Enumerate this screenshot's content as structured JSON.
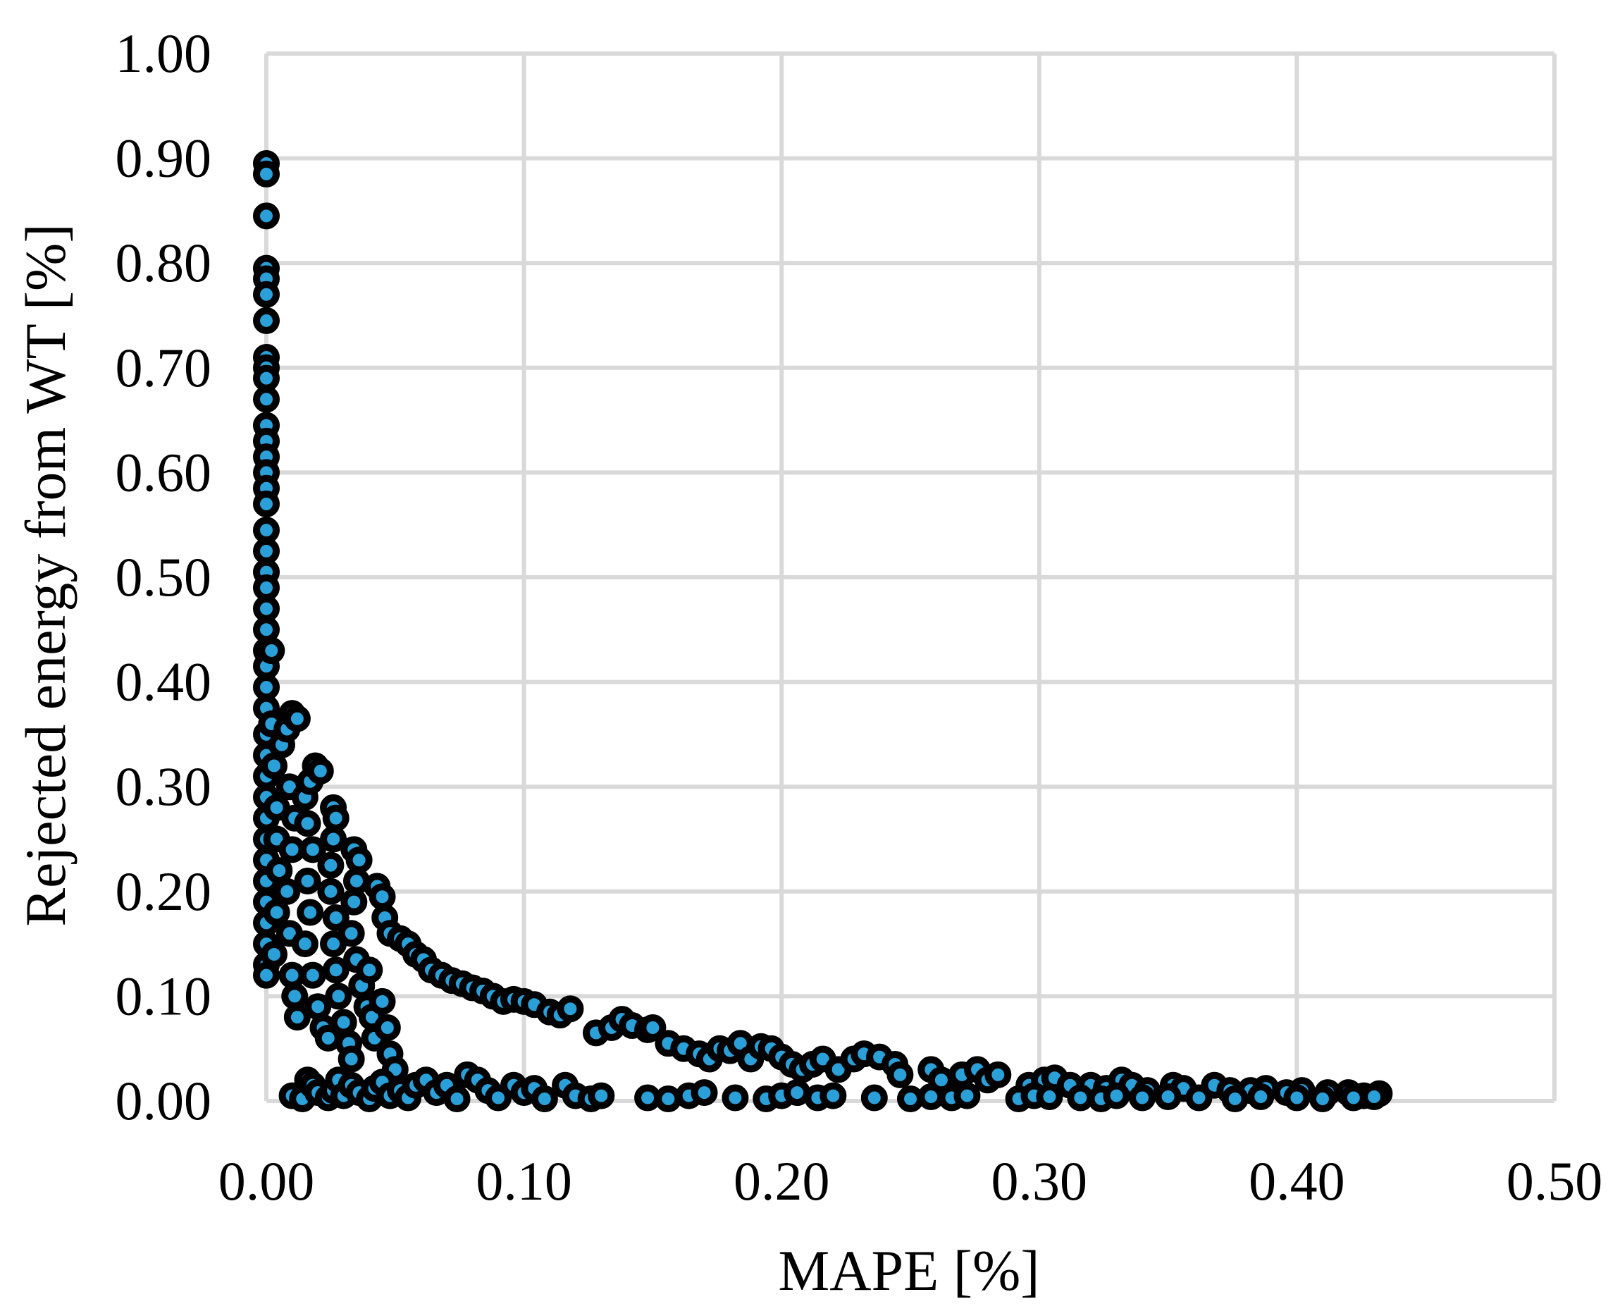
{
  "chart_data": {
    "type": "scatter",
    "xlabel": "MAPE [%]",
    "ylabel": "Rejected energy from WT [%]",
    "xlim": [
      0,
      0.5
    ],
    "ylim": [
      0,
      1.0
    ],
    "x_ticks": [
      "0.00",
      "0.10",
      "0.20",
      "0.30",
      "0.40",
      "0.50"
    ],
    "y_ticks": [
      "0.00",
      "0.10",
      "0.20",
      "0.30",
      "0.40",
      "0.50",
      "0.60",
      "0.70",
      "0.80",
      "0.90",
      "1.00"
    ],
    "grid": true,
    "legend": "none",
    "marker_fill": "#2a9fd8",
    "marker_edge": "#000000",
    "grid_color": "#d9d9d9",
    "series": [
      {
        "points": [
          [
            0.0,
            0.895
          ],
          [
            0.0,
            0.885
          ],
          [
            0.0,
            0.845
          ],
          [
            0.0,
            0.795
          ],
          [
            0.0,
            0.785
          ],
          [
            0.0,
            0.77
          ],
          [
            0.0,
            0.745
          ],
          [
            0.0,
            0.71
          ],
          [
            0.0,
            0.7
          ],
          [
            0.0,
            0.69
          ],
          [
            0.0,
            0.67
          ],
          [
            0.0,
            0.645
          ],
          [
            0.0,
            0.63
          ],
          [
            0.0,
            0.615
          ],
          [
            0.0,
            0.6
          ],
          [
            0.0,
            0.585
          ],
          [
            0.0,
            0.57
          ],
          [
            0.0,
            0.545
          ],
          [
            0.0,
            0.525
          ],
          [
            0.0,
            0.505
          ],
          [
            0.0,
            0.49
          ],
          [
            0.0,
            0.47
          ],
          [
            0.0,
            0.45
          ],
          [
            0.0,
            0.43
          ],
          [
            0.0,
            0.415
          ],
          [
            0.0,
            0.395
          ],
          [
            0.0,
            0.375
          ],
          [
            0.0,
            0.35
          ],
          [
            0.0,
            0.33
          ],
          [
            0.0,
            0.31
          ],
          [
            0.0,
            0.29
          ],
          [
            0.0,
            0.27
          ],
          [
            0.0,
            0.25
          ],
          [
            0.0,
            0.23
          ],
          [
            0.0,
            0.21
          ],
          [
            0.0,
            0.19
          ],
          [
            0.0,
            0.17
          ],
          [
            0.0,
            0.15
          ],
          [
            0.0,
            0.13
          ],
          [
            0.0,
            0.12
          ],
          [
            0.002,
            0.43
          ],
          [
            0.002,
            0.36
          ],
          [
            0.003,
            0.32
          ],
          [
            0.004,
            0.28
          ],
          [
            0.004,
            0.25
          ],
          [
            0.005,
            0.22
          ],
          [
            0.004,
            0.18
          ],
          [
            0.003,
            0.14
          ],
          [
            0.006,
            0.34
          ],
          [
            0.008,
            0.355
          ],
          [
            0.01,
            0.37
          ],
          [
            0.012,
            0.365
          ],
          [
            0.009,
            0.3
          ],
          [
            0.011,
            0.27
          ],
          [
            0.01,
            0.24
          ],
          [
            0.008,
            0.2
          ],
          [
            0.009,
            0.16
          ],
          [
            0.01,
            0.12
          ],
          [
            0.011,
            0.1
          ],
          [
            0.012,
            0.08
          ],
          [
            0.015,
            0.29
          ],
          [
            0.017,
            0.305
          ],
          [
            0.019,
            0.32
          ],
          [
            0.021,
            0.315
          ],
          [
            0.016,
            0.265
          ],
          [
            0.018,
            0.24
          ],
          [
            0.016,
            0.21
          ],
          [
            0.017,
            0.18
          ],
          [
            0.015,
            0.15
          ],
          [
            0.018,
            0.12
          ],
          [
            0.02,
            0.09
          ],
          [
            0.022,
            0.07
          ],
          [
            0.024,
            0.06
          ],
          [
            0.026,
            0.28
          ],
          [
            0.027,
            0.27
          ],
          [
            0.026,
            0.25
          ],
          [
            0.025,
            0.225
          ],
          [
            0.025,
            0.2
          ],
          [
            0.027,
            0.175
          ],
          [
            0.026,
            0.15
          ],
          [
            0.027,
            0.125
          ],
          [
            0.028,
            0.1
          ],
          [
            0.03,
            0.075
          ],
          [
            0.032,
            0.055
          ],
          [
            0.033,
            0.04
          ],
          [
            0.034,
            0.24
          ],
          [
            0.036,
            0.23
          ],
          [
            0.035,
            0.21
          ],
          [
            0.034,
            0.19
          ],
          [
            0.033,
            0.16
          ],
          [
            0.035,
            0.135
          ],
          [
            0.037,
            0.11
          ],
          [
            0.039,
            0.09
          ],
          [
            0.04,
            0.125
          ],
          [
            0.041,
            0.08
          ],
          [
            0.042,
            0.06
          ],
          [
            0.043,
            0.205
          ],
          [
            0.045,
            0.195
          ],
          [
            0.046,
            0.175
          ],
          [
            0.048,
            0.16
          ],
          [
            0.045,
            0.095
          ],
          [
            0.047,
            0.07
          ],
          [
            0.048,
            0.045
          ],
          [
            0.05,
            0.03
          ],
          [
            0.052,
            0.155
          ],
          [
            0.055,
            0.15
          ],
          [
            0.058,
            0.14
          ],
          [
            0.061,
            0.135
          ],
          [
            0.064,
            0.125
          ],
          [
            0.068,
            0.12
          ],
          [
            0.072,
            0.115
          ],
          [
            0.076,
            0.112
          ],
          [
            0.08,
            0.108
          ],
          [
            0.084,
            0.105
          ],
          [
            0.088,
            0.1
          ],
          [
            0.092,
            0.095
          ],
          [
            0.096,
            0.097
          ],
          [
            0.1,
            0.095
          ],
          [
            0.104,
            0.092
          ],
          [
            0.11,
            0.085
          ],
          [
            0.114,
            0.082
          ],
          [
            0.118,
            0.088
          ],
          [
            0.128,
            0.065
          ],
          [
            0.134,
            0.07
          ],
          [
            0.138,
            0.078
          ],
          [
            0.142,
            0.072
          ],
          [
            0.148,
            0.068
          ],
          [
            0.15,
            0.07
          ],
          [
            0.156,
            0.055
          ],
          [
            0.162,
            0.05
          ],
          [
            0.168,
            0.045
          ],
          [
            0.172,
            0.04
          ],
          [
            0.176,
            0.05
          ],
          [
            0.18,
            0.048
          ],
          [
            0.184,
            0.055
          ],
          [
            0.188,
            0.04
          ],
          [
            0.192,
            0.052
          ],
          [
            0.196,
            0.05
          ],
          [
            0.2,
            0.042
          ],
          [
            0.204,
            0.035
          ],
          [
            0.208,
            0.03
          ],
          [
            0.212,
            0.035
          ],
          [
            0.216,
            0.04
          ],
          [
            0.222,
            0.03
          ],
          [
            0.228,
            0.04
          ],
          [
            0.232,
            0.045
          ],
          [
            0.238,
            0.042
          ],
          [
            0.244,
            0.035
          ],
          [
            0.246,
            0.025
          ],
          [
            0.258,
            0.03
          ],
          [
            0.262,
            0.02
          ],
          [
            0.27,
            0.025
          ],
          [
            0.276,
            0.03
          ],
          [
            0.28,
            0.02
          ],
          [
            0.284,
            0.025
          ],
          [
            0.296,
            0.015
          ],
          [
            0.302,
            0.02
          ],
          [
            0.306,
            0.022
          ],
          [
            0.312,
            0.015
          ],
          [
            0.32,
            0.015
          ],
          [
            0.326,
            0.012
          ],
          [
            0.332,
            0.02
          ],
          [
            0.336,
            0.015
          ],
          [
            0.342,
            0.01
          ],
          [
            0.352,
            0.015
          ],
          [
            0.356,
            0.012
          ],
          [
            0.368,
            0.015
          ],
          [
            0.374,
            0.01
          ],
          [
            0.382,
            0.01
          ],
          [
            0.388,
            0.012
          ],
          [
            0.396,
            0.008
          ],
          [
            0.402,
            0.01
          ],
          [
            0.412,
            0.008
          ],
          [
            0.42,
            0.008
          ],
          [
            0.426,
            0.005
          ],
          [
            0.432,
            0.007
          ],
          [
            0.01,
            0.005
          ],
          [
            0.014,
            0.002
          ],
          [
            0.016,
            0.02
          ],
          [
            0.018,
            0.015
          ],
          [
            0.02,
            0.008
          ],
          [
            0.024,
            0.003
          ],
          [
            0.026,
            0.01
          ],
          [
            0.028,
            0.02
          ],
          [
            0.03,
            0.005
          ],
          [
            0.033,
            0.015
          ],
          [
            0.036,
            0.008
          ],
          [
            0.04,
            0.002
          ],
          [
            0.042,
            0.012
          ],
          [
            0.045,
            0.018
          ],
          [
            0.048,
            0.005
          ],
          [
            0.052,
            0.01
          ],
          [
            0.055,
            0.003
          ],
          [
            0.058,
            0.015
          ],
          [
            0.062,
            0.02
          ],
          [
            0.066,
            0.008
          ],
          [
            0.07,
            0.015
          ],
          [
            0.074,
            0.002
          ],
          [
            0.078,
            0.025
          ],
          [
            0.082,
            0.02
          ],
          [
            0.086,
            0.01
          ],
          [
            0.09,
            0.003
          ],
          [
            0.096,
            0.015
          ],
          [
            0.1,
            0.008
          ],
          [
            0.104,
            0.012
          ],
          [
            0.108,
            0.002
          ],
          [
            0.116,
            0.015
          ],
          [
            0.12,
            0.005
          ],
          [
            0.126,
            0.002
          ],
          [
            0.13,
            0.005
          ],
          [
            0.148,
            0.003
          ],
          [
            0.156,
            0.002
          ],
          [
            0.164,
            0.005
          ],
          [
            0.17,
            0.008
          ],
          [
            0.182,
            0.003
          ],
          [
            0.194,
            0.002
          ],
          [
            0.2,
            0.005
          ],
          [
            0.206,
            0.008
          ],
          [
            0.214,
            0.003
          ],
          [
            0.22,
            0.005
          ],
          [
            0.236,
            0.003
          ],
          [
            0.25,
            0.002
          ],
          [
            0.258,
            0.004
          ],
          [
            0.266,
            0.003
          ],
          [
            0.272,
            0.005
          ],
          [
            0.292,
            0.002
          ],
          [
            0.298,
            0.005
          ],
          [
            0.304,
            0.004
          ],
          [
            0.316,
            0.003
          ],
          [
            0.324,
            0.002
          ],
          [
            0.33,
            0.005
          ],
          [
            0.34,
            0.003
          ],
          [
            0.35,
            0.004
          ],
          [
            0.362,
            0.003
          ],
          [
            0.376,
            0.002
          ],
          [
            0.386,
            0.004
          ],
          [
            0.4,
            0.003
          ],
          [
            0.41,
            0.002
          ],
          [
            0.422,
            0.003
          ],
          [
            0.43,
            0.004
          ]
        ]
      }
    ]
  }
}
